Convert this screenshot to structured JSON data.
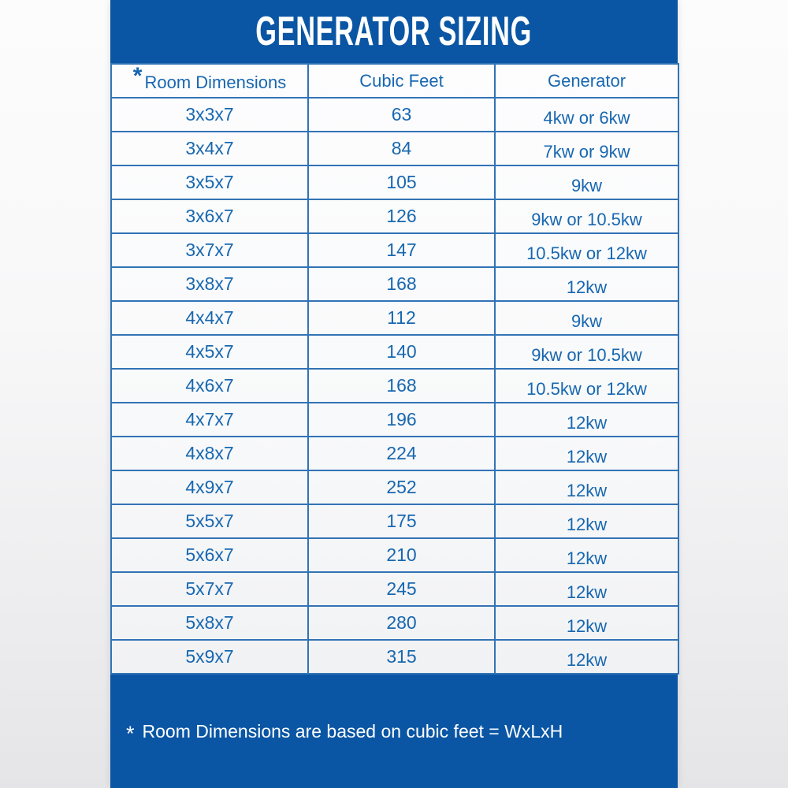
{
  "title": "GENERATOR SIZING",
  "table": {
    "header": {
      "asterisk": "*",
      "columns": [
        "Room Dimensions",
        "Cubic Feet",
        "Generator"
      ]
    },
    "rows": [
      {
        "room": "3x3x7",
        "cubic_feet": "63",
        "generator": "4kw or 6kw"
      },
      {
        "room": "3x4x7",
        "cubic_feet": "84",
        "generator": "7kw or 9kw"
      },
      {
        "room": "3x5x7",
        "cubic_feet": "105",
        "generator": "9kw"
      },
      {
        "room": "3x6x7",
        "cubic_feet": "126",
        "generator": "9kw or 10.5kw"
      },
      {
        "room": "3x7x7",
        "cubic_feet": "147",
        "generator": "10.5kw or 12kw"
      },
      {
        "room": "3x8x7",
        "cubic_feet": "168",
        "generator": "12kw"
      },
      {
        "room": "4x4x7",
        "cubic_feet": "112",
        "generator": "9kw"
      },
      {
        "room": "4x5x7",
        "cubic_feet": "140",
        "generator": "9kw or 10.5kw"
      },
      {
        "room": "4x6x7",
        "cubic_feet": "168",
        "generator": "10.5kw or 12kw"
      },
      {
        "room": "4x7x7",
        "cubic_feet": "196",
        "generator": "12kw"
      },
      {
        "room": "4x8x7",
        "cubic_feet": "224",
        "generator": "12kw"
      },
      {
        "room": "4x9x7",
        "cubic_feet": "252",
        "generator": "12kw"
      },
      {
        "room": "5x5x7",
        "cubic_feet": "175",
        "generator": "12kw"
      },
      {
        "room": "5x6x7",
        "cubic_feet": "210",
        "generator": "12kw"
      },
      {
        "room": "5x7x7",
        "cubic_feet": "245",
        "generator": "12kw"
      },
      {
        "room": "5x8x7",
        "cubic_feet": "280",
        "generator": "12kw"
      },
      {
        "room": "5x9x7",
        "cubic_feet": "315",
        "generator": "12kw"
      }
    ]
  },
  "footnote": {
    "asterisk": "*",
    "text": "Room Dimensions are based on cubic feet = WxLxH"
  },
  "colors": {
    "panel_blue": "#0a56a4",
    "table_text_blue": "#1767b0",
    "border_blue": "#3273b6",
    "title_white": "#ffffff"
  }
}
